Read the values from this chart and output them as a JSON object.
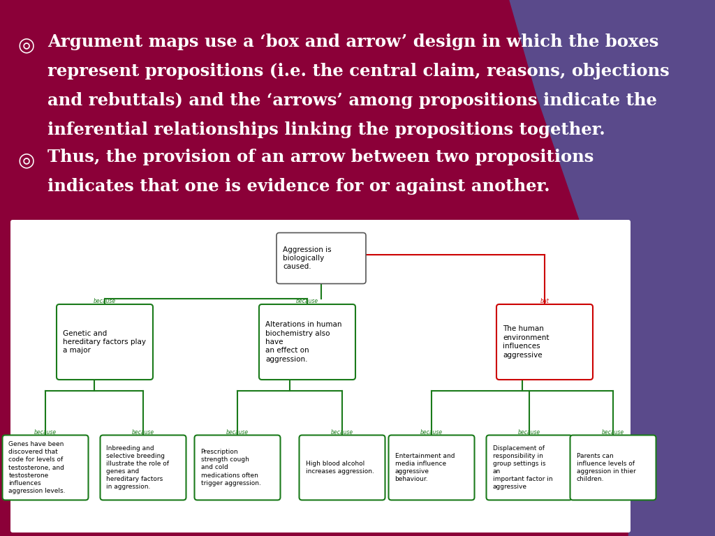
{
  "bg_color": "#8B0038",
  "purple_accent": "#5A4A8B",
  "text_color": "#FFFFFF",
  "diagram_bg": "#FFFFFF",
  "green_box": "#1a7a1a",
  "red_box": "#cc0000",
  "green_label": "#1a7a1a",
  "red_label": "#cc0000",
  "bullet1_line1": "Argument maps use a ‘box and arrow’ design in which the boxes",
  "bullet1_line2": "represent propositions (i.e. the central claim, reasons, objections",
  "bullet1_line3": "and rebuttals) and the ‘arrows’ among propositions indicate the",
  "bullet1_line4": "inferential relationships linking the propositions together.",
  "bullet2_line1": "Thus, the provision of an arrow between two propositions",
  "bullet2_line2": "indicates that one is evidence for or against another.",
  "diagram_title": "Aggression is\nbiologically\ncaused.",
  "node_left": "Genetic and\nhereditary factors play\na major",
  "node_center": "Alterations in human\nbiochemistry also\nhave\nan effect on\naggression.",
  "node_right": "The human\nenvironment\ninfluences\naggressive",
  "node_ll": "Genes have been\ndiscovered that\ncode for levels of\ntestosterone, and\ntestosterone\ninfluences\naggression levels.",
  "node_lc": "Inbreeding and\nselective breeding\nillustrate the role of\ngenes and\nhereditary factors\nin aggression.",
  "node_cl": "Prescription\nstrength cough\nand cold\nmedications often\ntrigger aggression.",
  "node_cr": "High blood alcohol\nincreases aggression.",
  "node_rl": "Entertainment and\nmedia influence\naggressive\nbehaviour.",
  "node_rc": "Displacement of\nresponsibility in\ngroup settings is\nan\nimportant factor in\naggressive",
  "node_rr": "Parents can\ninfluence levels of\naggression in thier\nchildren.",
  "label_because": "because",
  "label_but": "but"
}
